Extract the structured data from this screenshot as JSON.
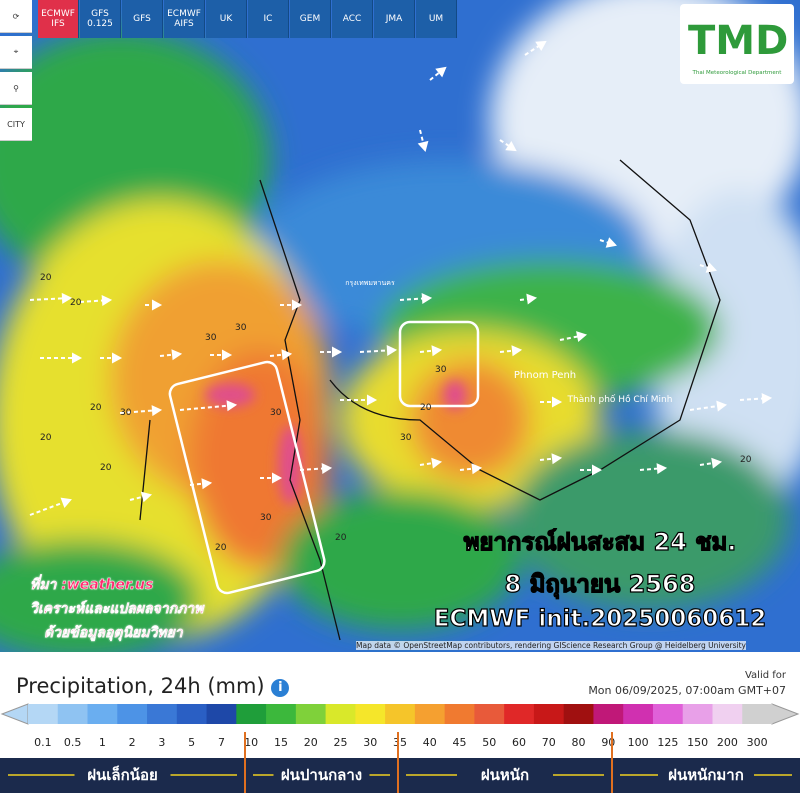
{
  "toolbar": {
    "models": [
      "ECMWF IFS",
      "GFS 0.125",
      "GFS",
      "ECMWF AIFS",
      "UK",
      "IC",
      "GEM",
      "ACC",
      "JMA",
      "UM"
    ],
    "city": "CITY"
  },
  "logo": {
    "text": "TMD",
    "subtitle": "Thai Meteorological Department"
  },
  "map": {
    "places": [
      "กรุงเทพมหานคร",
      "Phnom Penh",
      "Thành phố Hồ Chí Minh"
    ],
    "contour_labels": [
      "20",
      "20",
      "30",
      "30",
      "20",
      "30",
      "20",
      "30",
      "30",
      "20",
      "20",
      "30",
      "30",
      "20",
      "20",
      "20"
    ],
    "attribution": "Map data © OpenStreetMap contributors, rendering GIScience Research Group @ Heidelberg University"
  },
  "overlay": {
    "title": "พยากรณ์ฝนสะสม 24 ชม.",
    "date": "8 มิถุนายน 2568",
    "model": "ECMWF init.20250060612"
  },
  "source": {
    "lines": [
      "ที่มา :weather.us",
      "วิเคราะห์และแปลผลจากภาพ",
      "ด้วยข้อมูลอุตุนิยมวิทยา"
    ]
  },
  "legend": {
    "title": "Precipitation, 24h (mm)",
    "valid_label": "Valid for",
    "valid_time": "Mon 06/09/2025, 07:00am GMT+07",
    "ticks": [
      "0.1",
      "0.5",
      "1",
      "2",
      "3",
      "5",
      "7",
      "10",
      "15",
      "20",
      "25",
      "30",
      "35",
      "40",
      "45",
      "50",
      "60",
      "70",
      "80",
      "90",
      "100",
      "125",
      "150",
      "200",
      "300"
    ],
    "colors": [
      "#b4d7f5",
      "#8fc3f2",
      "#6aaef0",
      "#4d93e6",
      "#3a78d6",
      "#2a5fc4",
      "#1e48a8",
      "#1f9e3a",
      "#3cb83c",
      "#7fd13a",
      "#d9e82a",
      "#f5e62a",
      "#f5c52a",
      "#f5a030",
      "#f07a30",
      "#e85a3a",
      "#e02828",
      "#c81818",
      "#a01010",
      "#c01878",
      "#d030b0",
      "#e060d8",
      "#e8a0e8",
      "#f0d0f0",
      "#d0d0d0"
    ],
    "categories": [
      "ฝนเล็กน้อย",
      "ฝนปานกลาง",
      "ฝนหนัก",
      "ฝนหนักมาก"
    ]
  }
}
